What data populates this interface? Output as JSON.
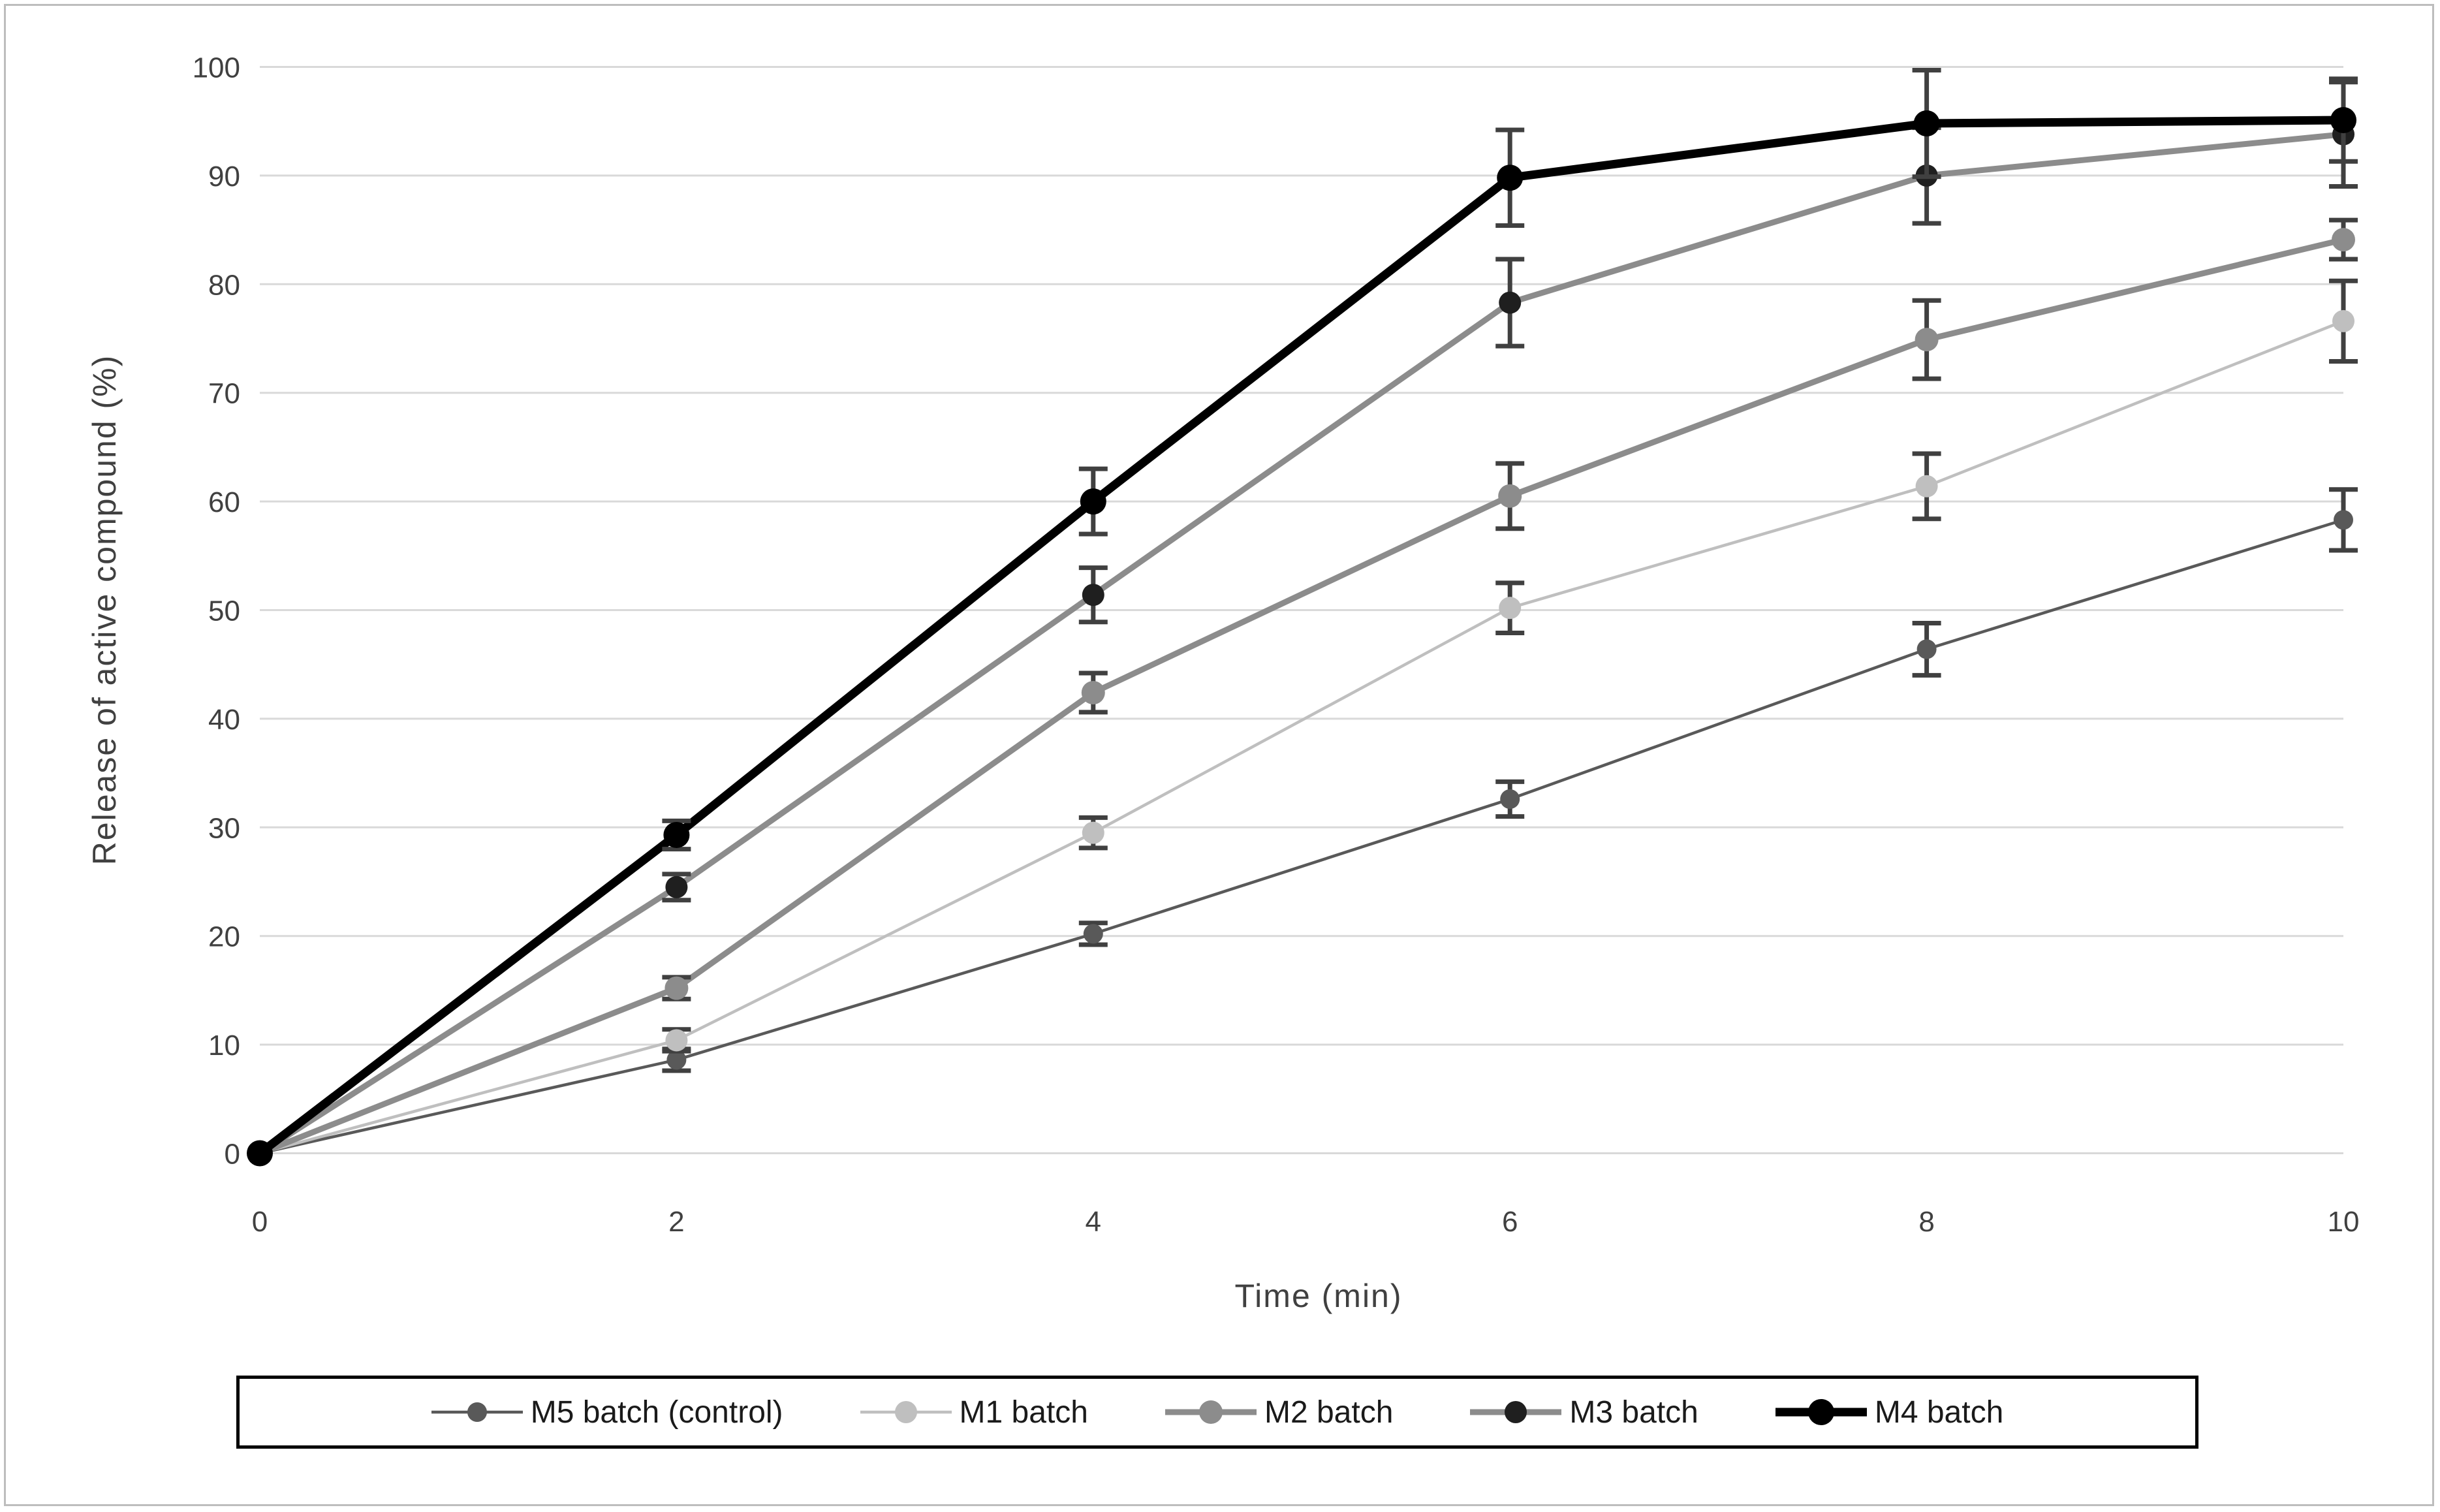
{
  "figure": {
    "border_color": "#bdbdbd",
    "background": "#ffffff"
  },
  "chart_data": {
    "type": "line",
    "title": "",
    "xlabel": "Time (min)",
    "ylabel": "Release of active compound (%)",
    "x": [
      0,
      2,
      4,
      6,
      8,
      10
    ],
    "xticks": [
      0,
      2,
      4,
      6,
      8,
      10
    ],
    "yticks": [
      0,
      10,
      20,
      30,
      40,
      50,
      60,
      70,
      80,
      90,
      100
    ],
    "xlim": [
      0,
      10
    ],
    "ylim": [
      0,
      100
    ],
    "grid": "horizontal",
    "gridline_color": "#d9d9d9",
    "error_bar_color": "#404040",
    "tick_label_color": "#404040",
    "axis_title_color": "#404040",
    "legend_position": "bottom",
    "legend_border_color": "#000000",
    "series": [
      {
        "name": "M5 batch (control)",
        "color": "#595959",
        "marker_color": "#595959",
        "line_width": 4.5,
        "marker_size": 30,
        "values": [
          0,
          8.6,
          20.2,
          32.6,
          46.4,
          58.3
        ],
        "errors": [
          0,
          1.0,
          1.0,
          1.6,
          2.4,
          2.8
        ]
      },
      {
        "name": "M1 batch",
        "color": "#bfbfbf",
        "marker_color": "#bfbfbf",
        "line_width": 4.5,
        "marker_size": 34,
        "values": [
          0,
          10.4,
          29.5,
          50.2,
          61.4,
          76.6
        ],
        "errors": [
          0,
          1.0,
          1.4,
          2.3,
          3.0,
          3.7
        ]
      },
      {
        "name": "M2 batch",
        "color": "#8c8c8c",
        "marker_color": "#8c8c8c",
        "line_width": 9,
        "marker_size": 36,
        "values": [
          0,
          15.2,
          42.4,
          60.5,
          74.9,
          84.1
        ],
        "errors": [
          0,
          1.0,
          1.8,
          3.0,
          3.6,
          1.8
        ]
      },
      {
        "name": "M3 batch",
        "color": "#8c8c8c",
        "marker_color": "#1f1f1f",
        "line_width": 9,
        "marker_size": 34,
        "values": [
          0,
          24.5,
          51.4,
          78.3,
          90.0,
          93.8
        ],
        "errors": [
          0,
          1.2,
          2.5,
          4.0,
          4.4,
          4.8
        ]
      },
      {
        "name": "M4 batch",
        "color": "#000000",
        "marker_color": "#000000",
        "line_width": 13,
        "marker_size": 40,
        "values": [
          0,
          29.3,
          60.0,
          89.8,
          94.8,
          95.1
        ],
        "errors": [
          0,
          1.3,
          3.0,
          4.4,
          4.9,
          3.8
        ]
      }
    ]
  }
}
